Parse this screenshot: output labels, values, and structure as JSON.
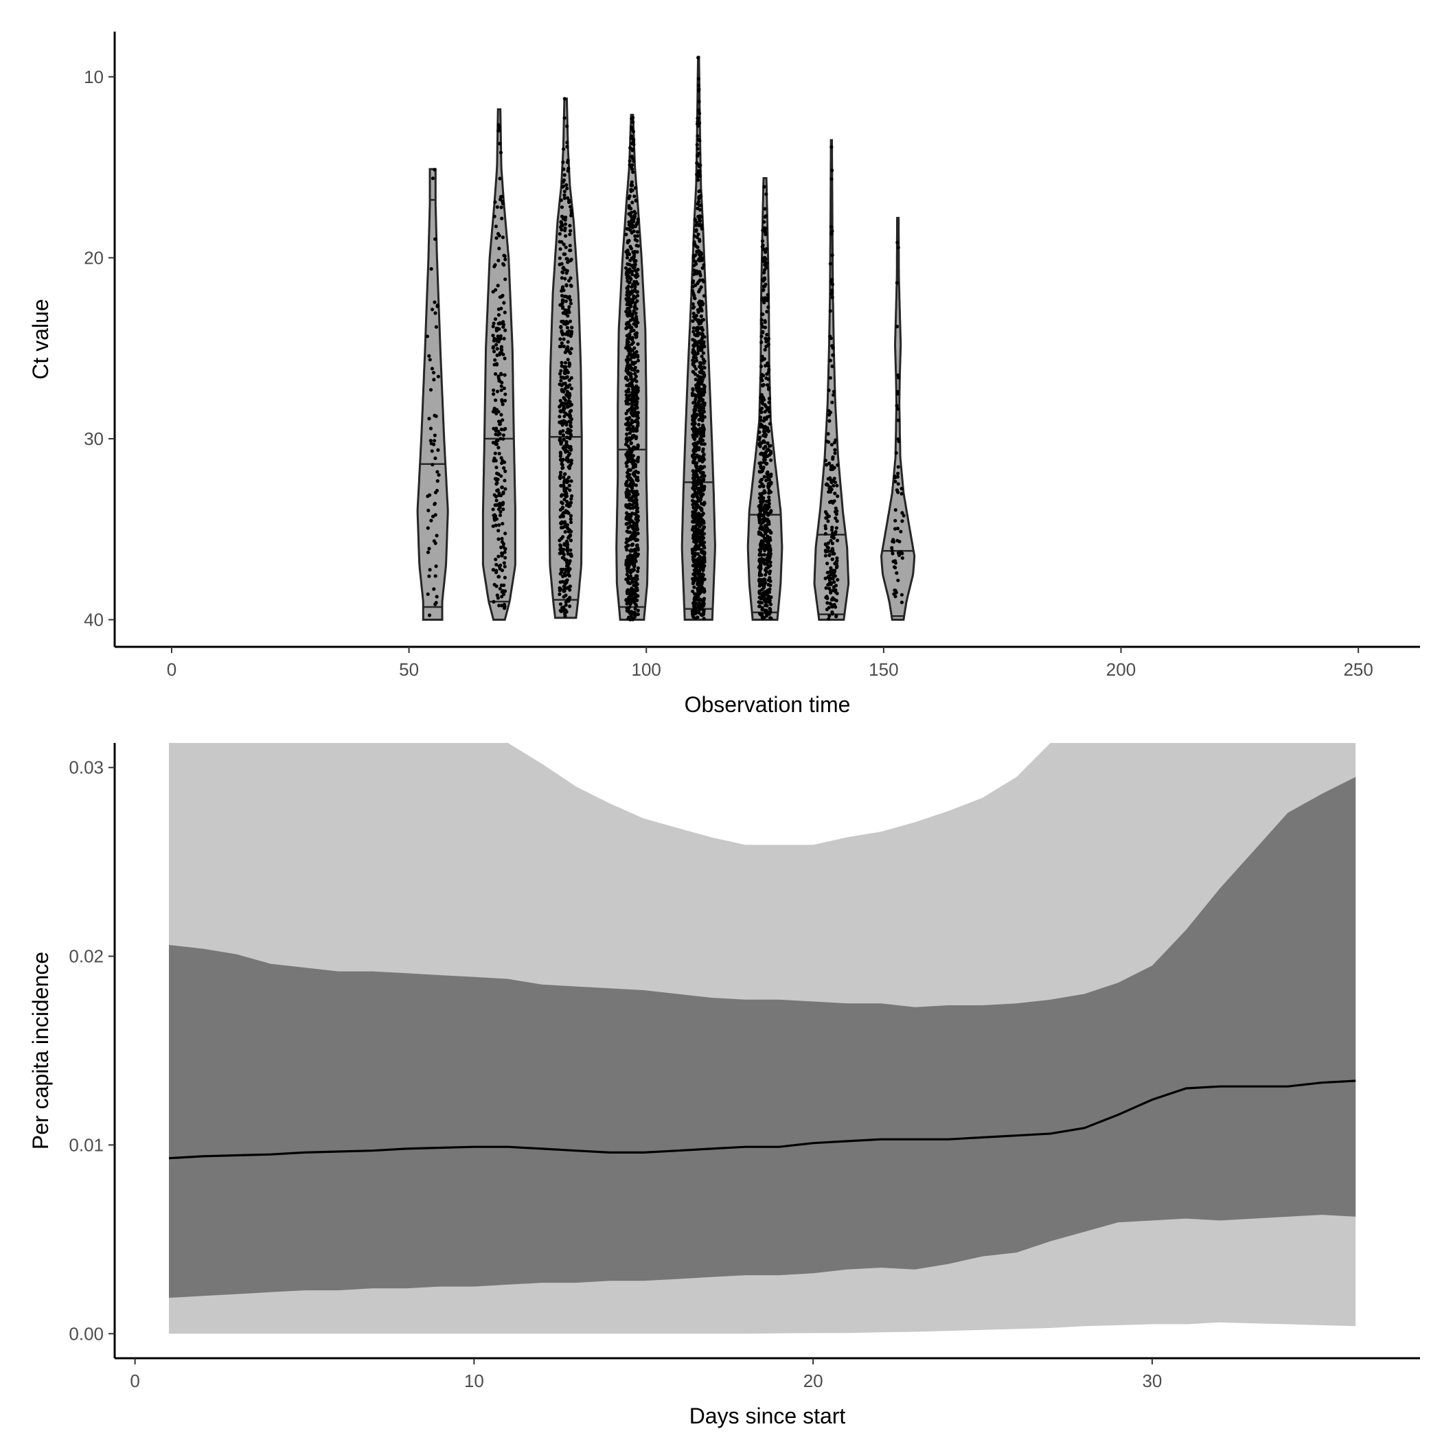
{
  "chart_data": [
    {
      "type": "violin",
      "xlabel": "Observation time",
      "ylabel": "Ct value",
      "xlim": [
        -12,
        263
      ],
      "xticks": [
        0,
        50,
        100,
        150,
        200,
        250
      ],
      "ylim": [
        41.5,
        7.5
      ],
      "yticks": [
        10,
        20,
        30,
        40
      ],
      "y_reversed": true,
      "grid": false,
      "fill_color": "#a6a6a6",
      "outline_color": "#262626",
      "point_color": "#000000",
      "groups": [
        {
          "x": 55,
          "ct_min": 15.1,
          "ct_max": 40.0,
          "quantiles": [
            16.8,
            31.4,
            39.3
          ],
          "approx_n": 60,
          "profile": [
            [
              15.1,
              0.6
            ],
            [
              17.0,
              0.6
            ],
            [
              20.0,
              0.9
            ],
            [
              25.0,
              1.6
            ],
            [
              30.0,
              2.4
            ],
            [
              34.0,
              3.2
            ],
            [
              37.0,
              2.8
            ],
            [
              39.0,
              2.0
            ],
            [
              40.0,
              2.0
            ]
          ]
        },
        {
          "x": 69,
          "ct_min": 11.8,
          "ct_max": 40.0,
          "quantiles": [
            30.0,
            39.0
          ],
          "approx_n": 250,
          "profile": [
            [
              11.8,
              0.25
            ],
            [
              15.0,
              0.45
            ],
            [
              17.0,
              1.0
            ],
            [
              20.0,
              2.0
            ],
            [
              25.0,
              2.8
            ],
            [
              30.0,
              3.1
            ],
            [
              34.0,
              3.4
            ],
            [
              37.0,
              3.4
            ],
            [
              39.0,
              2.2
            ],
            [
              40.0,
              1.2
            ]
          ]
        },
        {
          "x": 83,
          "ct_min": 11.2,
          "ct_max": 39.9,
          "quantiles": [
            29.9,
            38.9
          ],
          "approx_n": 500,
          "profile": [
            [
              11.2,
              0.25
            ],
            [
              14.0,
              0.5
            ],
            [
              16.0,
              0.9
            ],
            [
              18.0,
              1.7
            ],
            [
              22.0,
              2.7
            ],
            [
              26.0,
              3.2
            ],
            [
              30.0,
              3.4
            ],
            [
              34.0,
              3.4
            ],
            [
              37.0,
              3.3
            ],
            [
              39.0,
              2.6
            ],
            [
              39.9,
              2.2
            ]
          ]
        },
        {
          "x": 97,
          "ct_min": 12.1,
          "ct_max": 40.0,
          "quantiles": [
            30.6,
            39.3
          ],
          "approx_n": 900,
          "profile": [
            [
              12.1,
              0.2
            ],
            [
              15.0,
              0.6
            ],
            [
              17.0,
              1.2
            ],
            [
              20.0,
              2.0
            ],
            [
              24.0,
              2.8
            ],
            [
              28.0,
              3.0
            ],
            [
              32.0,
              3.0
            ],
            [
              36.0,
              3.3
            ],
            [
              38.0,
              3.2
            ],
            [
              40.0,
              2.5
            ]
          ]
        },
        {
          "x": 111,
          "ct_min": 8.9,
          "ct_max": 40.0,
          "quantiles": [
            32.4,
            39.4
          ],
          "approx_n": 900,
          "profile": [
            [
              8.9,
              0.1
            ],
            [
              13.0,
              0.3
            ],
            [
              16.0,
              0.5
            ],
            [
              18.0,
              0.9
            ],
            [
              22.0,
              1.5
            ],
            [
              26.0,
              2.2
            ],
            [
              30.0,
              2.8
            ],
            [
              33.0,
              3.2
            ],
            [
              36.0,
              3.5
            ],
            [
              38.0,
              3.2
            ],
            [
              40.0,
              2.9
            ]
          ]
        },
        {
          "x": 125,
          "ct_min": 15.6,
          "ct_max": 40.0,
          "quantiles": [
            34.2,
            39.6
          ],
          "approx_n": 500,
          "profile": [
            [
              15.6,
              0.3
            ],
            [
              18.0,
              0.5
            ],
            [
              22.0,
              0.8
            ],
            [
              26.0,
              0.9
            ],
            [
              29.0,
              1.2
            ],
            [
              31.0,
              2.0
            ],
            [
              34.0,
              3.3
            ],
            [
              36.0,
              3.6
            ],
            [
              38.0,
              3.3
            ],
            [
              40.0,
              2.6
            ]
          ]
        },
        {
          "x": 139,
          "ct_min": 13.5,
          "ct_max": 40.0,
          "quantiles": [
            35.3,
            39.7
          ],
          "approx_n": 200,
          "profile": [
            [
              13.5,
              0.1
            ],
            [
              18.0,
              0.2
            ],
            [
              22.0,
              0.3
            ],
            [
              25.0,
              0.5
            ],
            [
              28.0,
              0.8
            ],
            [
              31.0,
              1.4
            ],
            [
              34.0,
              2.4
            ],
            [
              36.0,
              3.3
            ],
            [
              38.0,
              3.6
            ],
            [
              39.0,
              3.1
            ],
            [
              40.0,
              2.6
            ]
          ]
        },
        {
          "x": 153,
          "ct_min": 17.8,
          "ct_max": 40.0,
          "quantiles": [
            36.2,
            39.8
          ],
          "approx_n": 60,
          "profile": [
            [
              17.8,
              0.15
            ],
            [
              21.0,
              0.2
            ],
            [
              23.0,
              0.4
            ],
            [
              24.8,
              0.6
            ],
            [
              26.5,
              0.4
            ],
            [
              28.0,
              0.3
            ],
            [
              31.0,
              0.5
            ],
            [
              33.0,
              1.2
            ],
            [
              35.0,
              2.5
            ],
            [
              36.5,
              3.5
            ],
            [
              37.5,
              3.2
            ],
            [
              39.0,
              1.8
            ],
            [
              40.0,
              1.2
            ]
          ]
        }
      ]
    },
    {
      "type": "area",
      "xlabel": "Days since start",
      "ylabel": "Per capita incidence",
      "xlim": [
        -0.6,
        37.9
      ],
      "xticks": [
        0,
        10,
        20,
        30
      ],
      "ylim": [
        -0.0013,
        0.0313
      ],
      "yticks": [
        0.0,
        0.01,
        0.02,
        0.03
      ],
      "ytick_labels": [
        "0.00",
        "0.01",
        "0.02",
        "0.03"
      ],
      "grid": false,
      "colors": {
        "outer_band": "#c8c8c8",
        "inner_band": "#777777",
        "median": "#000000"
      },
      "x": [
        1,
        2,
        3,
        4,
        5,
        6,
        7,
        8,
        9,
        10,
        11,
        12,
        13,
        14,
        15,
        16,
        17,
        18,
        19,
        20,
        21,
        22,
        23,
        24,
        25,
        26,
        27,
        28,
        29,
        30,
        31,
        32,
        33,
        34,
        35,
        36
      ],
      "median": [
        0.0093,
        0.0094,
        0.00945,
        0.0095,
        0.0096,
        0.00965,
        0.0097,
        0.0098,
        0.00985,
        0.0099,
        0.0099,
        0.0098,
        0.0097,
        0.0096,
        0.0096,
        0.0097,
        0.0098,
        0.0099,
        0.0099,
        0.0101,
        0.0102,
        0.0103,
        0.0103,
        0.0103,
        0.0104,
        0.0105,
        0.0106,
        0.0109,
        0.0116,
        0.0124,
        0.013,
        0.0131,
        0.0131,
        0.0131,
        0.0133,
        0.0134
      ],
      "inner_upper": [
        0.0206,
        0.0204,
        0.0201,
        0.0196,
        0.0194,
        0.0192,
        0.0192,
        0.0191,
        0.019,
        0.0189,
        0.0188,
        0.0185,
        0.0184,
        0.0183,
        0.0182,
        0.018,
        0.0178,
        0.0177,
        0.0177,
        0.0176,
        0.0175,
        0.0175,
        0.0173,
        0.0174,
        0.0174,
        0.0175,
        0.0177,
        0.018,
        0.0186,
        0.0195,
        0.0214,
        0.0236,
        0.0256,
        0.0276,
        0.0286,
        0.0295
      ],
      "inner_lower": [
        0.0019,
        0.002,
        0.0021,
        0.0022,
        0.0023,
        0.0023,
        0.0024,
        0.0024,
        0.0025,
        0.0025,
        0.0026,
        0.0027,
        0.0027,
        0.0028,
        0.0028,
        0.0029,
        0.003,
        0.0031,
        0.0031,
        0.0032,
        0.0034,
        0.0035,
        0.0034,
        0.0037,
        0.0041,
        0.0043,
        0.0049,
        0.0054,
        0.0059,
        0.006,
        0.0061,
        0.006,
        0.0061,
        0.0062,
        0.0063,
        0.0062
      ],
      "outer_upper": [
        0.0315,
        0.0315,
        0.0315,
        0.0315,
        0.0315,
        0.0315,
        0.0315,
        0.0315,
        0.0315,
        0.0315,
        0.0315,
        0.0302,
        0.029,
        0.0281,
        0.0273,
        0.0268,
        0.0263,
        0.0259,
        0.0259,
        0.0259,
        0.0263,
        0.0266,
        0.0271,
        0.0277,
        0.0284,
        0.0295,
        0.0315,
        0.0315,
        0.0315,
        0.0315,
        0.0315,
        0.0315,
        0.0315,
        0.0315,
        0.0315,
        0.0315
      ],
      "outer_lower": [
        0.0,
        0.0,
        0.0,
        0.0,
        0.0,
        0.0,
        0.0,
        0.0,
        0.0,
        0.0,
        0.0,
        0.0,
        0.0,
        0.0,
        0.0,
        0.0,
        0.0,
        0.0,
        2e-05,
        3e-05,
        4e-05,
        7e-05,
        0.0001,
        0.00015,
        0.0002,
        0.00025,
        0.0003,
        0.0004,
        0.00045,
        0.0005,
        0.0005,
        0.0006,
        0.00055,
        0.0005,
        0.00045,
        0.0004
      ]
    }
  ]
}
